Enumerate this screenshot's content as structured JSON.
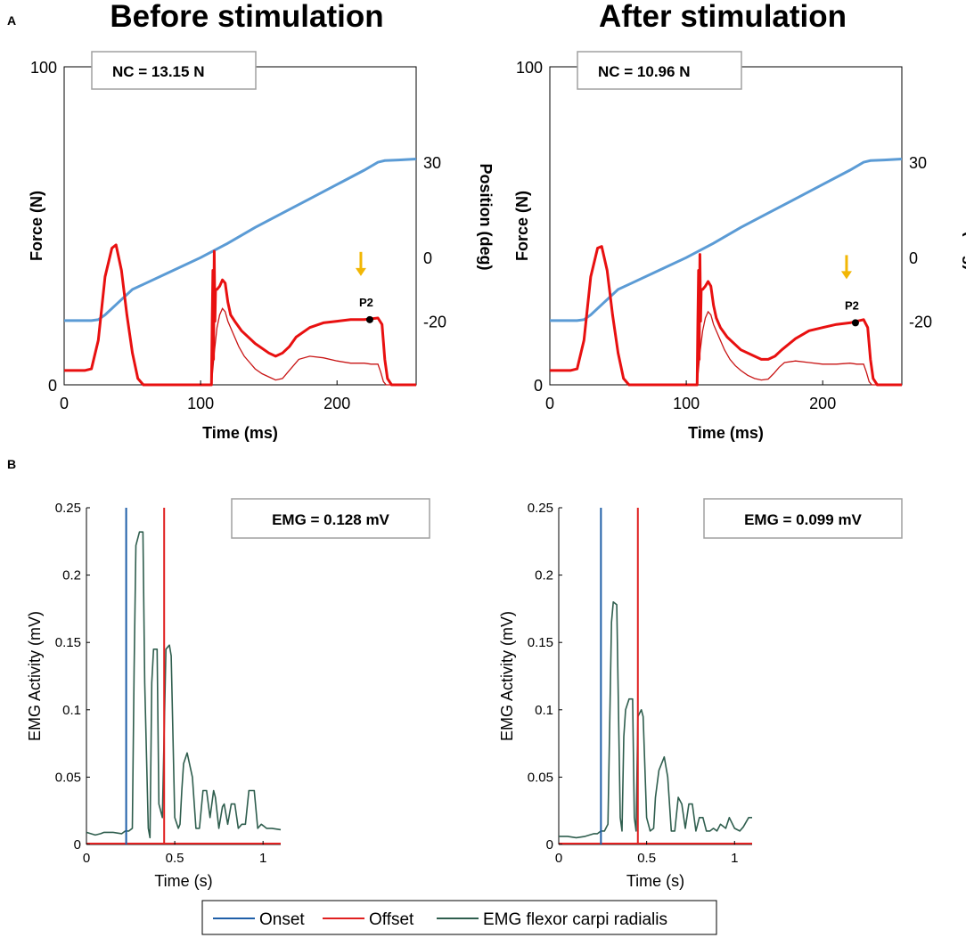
{
  "panel_a_label": "A",
  "panel_b_label": "B",
  "colors": {
    "force": "#e81010",
    "force_thin": "#c81414",
    "position": "#5b9bd5",
    "onset": "#1f5fa8",
    "offset": "#e02020",
    "emg": "#2f5e4e",
    "arrow": "#f2b705",
    "axis": "#000000",
    "box": "#a0a0a0"
  },
  "chart_data": [
    {
      "id": "force-before",
      "type": "line",
      "title": "Before stimulation",
      "xlabel": "Time (ms)",
      "ylabel": "Force (N)",
      "y2label": "Position (deg)",
      "xlim": [
        0,
        258
      ],
      "ylim": [
        0,
        100
      ],
      "y2lim": [
        -40,
        60
      ],
      "xticks": [
        "0",
        "100",
        "200"
      ],
      "xtick_values": [
        0,
        100,
        200
      ],
      "yticks": [
        "0",
        "100"
      ],
      "ytick_values": [
        0,
        100
      ],
      "y2ticks": [
        "-20",
        "0",
        "30"
      ],
      "y2tick_values": [
        -20,
        0,
        30
      ],
      "annotation": "NC = 13.15 N",
      "marker_label": "P2",
      "marker": [
        224,
        20.5
      ],
      "arrow_x": 224,
      "series": [
        {
          "name": "Position",
          "axis": "right",
          "x": [
            0,
            20,
            25,
            30,
            40,
            50,
            60,
            80,
            100,
            120,
            140,
            160,
            180,
            200,
            220,
            230,
            235,
            245,
            258
          ],
          "y": [
            -19.8,
            -19.8,
            -19.5,
            -18,
            -14,
            -10,
            -8,
            -4,
            0,
            4.5,
            9.5,
            14,
            18.5,
            23,
            27.5,
            30,
            30.5,
            30.7,
            31
          ]
        },
        {
          "name": "Force",
          "axis": "left",
          "x": [
            0,
            15,
            20,
            25,
            30,
            35,
            38,
            42,
            46,
            50,
            54,
            58,
            108,
            108.5,
            109,
            109.5,
            110,
            110.5,
            111,
            112,
            114,
            116,
            118,
            120,
            122,
            125,
            130,
            140,
            150,
            155,
            160,
            165,
            170,
            180,
            190,
            200,
            210,
            220,
            230,
            233,
            235,
            237,
            240,
            258
          ],
          "y": [
            4.5,
            4.5,
            5,
            14,
            34,
            43,
            44,
            36,
            22,
            10,
            2,
            0,
            0,
            20,
            36,
            8,
            42,
            20,
            30,
            30,
            31,
            33,
            32,
            26,
            22,
            20,
            17,
            13,
            10,
            9,
            10,
            12,
            15,
            18,
            19.5,
            20,
            20.5,
            20.5,
            21,
            19,
            8,
            2,
            0,
            0
          ]
        },
        {
          "name": "Force (thin)",
          "axis": "left",
          "x": [
            108,
            110,
            112,
            114,
            116,
            118,
            120,
            124,
            128,
            132,
            136,
            140,
            145,
            150,
            155,
            160,
            164,
            168,
            172,
            180,
            190,
            200,
            210,
            220,
            225,
            230,
            232,
            234,
            236,
            240,
            258
          ],
          "y": [
            0,
            10,
            18,
            22,
            24,
            23,
            20,
            16,
            12,
            9,
            7,
            5,
            3.5,
            2.5,
            1.5,
            2,
            4,
            6,
            8,
            9,
            8.5,
            7.5,
            6.8,
            6.8,
            6.5,
            6.5,
            4,
            1,
            0,
            0,
            0
          ]
        }
      ]
    },
    {
      "id": "force-after",
      "type": "line",
      "title": "After stimulation",
      "xlabel": "Time (ms)",
      "ylabel": "Force (N)",
      "y2label": "Position (deg)",
      "xlim": [
        0,
        258
      ],
      "ylim": [
        0,
        100
      ],
      "y2lim": [
        -40,
        60
      ],
      "xticks": [
        "0",
        "100",
        "200"
      ],
      "xtick_values": [
        0,
        100,
        200
      ],
      "yticks": [
        "0",
        "100"
      ],
      "ytick_values": [
        0,
        100
      ],
      "y2ticks": [
        "-20",
        "0",
        "30"
      ],
      "y2tick_values": [
        -20,
        0,
        30
      ],
      "annotation": "NC = 10.96 N",
      "marker_label": "P2",
      "marker": [
        224,
        19.5
      ],
      "arrow_x": 224,
      "series": [
        {
          "name": "Position",
          "axis": "right",
          "x": [
            0,
            20,
            25,
            30,
            40,
            50,
            60,
            80,
            100,
            120,
            140,
            160,
            180,
            200,
            220,
            230,
            235,
            245,
            258
          ],
          "y": [
            -19.8,
            -19.8,
            -19.5,
            -18,
            -14,
            -10,
            -8,
            -4,
            0,
            4.5,
            9.5,
            14,
            18.5,
            23,
            27.5,
            30,
            30.5,
            30.7,
            31
          ]
        },
        {
          "name": "Force",
          "axis": "left",
          "x": [
            0,
            15,
            20,
            25,
            30,
            35,
            38,
            42,
            46,
            50,
            54,
            58,
            108,
            108.5,
            109,
            109.5,
            110,
            110.5,
            111,
            112,
            114,
            116,
            118,
            120,
            122,
            125,
            130,
            140,
            150,
            155,
            160,
            165,
            170,
            180,
            190,
            200,
            210,
            220,
            230,
            233,
            235,
            237,
            240,
            258
          ],
          "y": [
            4.5,
            4.5,
            5,
            14,
            34,
            43,
            43.5,
            36,
            22,
            10,
            2,
            0,
            0,
            20,
            36,
            8,
            41,
            20,
            30,
            30,
            31,
            32.5,
            31,
            25,
            21,
            18,
            15,
            11,
            9,
            8,
            8,
            9,
            11,
            14.5,
            17,
            18,
            19,
            19.5,
            20.5,
            18,
            8,
            2,
            0,
            0
          ]
        },
        {
          "name": "Force (thin)",
          "axis": "left",
          "x": [
            108,
            110,
            112,
            114,
            116,
            118,
            120,
            124,
            128,
            132,
            136,
            140,
            145,
            150,
            155,
            160,
            164,
            168,
            172,
            180,
            190,
            200,
            210,
            220,
            225,
            230,
            232,
            234,
            236,
            240,
            258
          ],
          "y": [
            0,
            10,
            17,
            21,
            23,
            22,
            19,
            15,
            11,
            8,
            6,
            4.5,
            3,
            2,
            1.5,
            1.8,
            3.5,
            5.5,
            7,
            7.5,
            7,
            6.5,
            6.5,
            6.8,
            6.5,
            6.5,
            4,
            1,
            0,
            0,
            0
          ]
        }
      ]
    },
    {
      "id": "emg-before",
      "type": "line",
      "xlabel": "Time (s)",
      "ylabel": "EMG Activity (mV)",
      "xlim": [
        0,
        1.1
      ],
      "ylim": [
        0,
        0.25
      ],
      "xticks": [
        "0",
        "0.5",
        "1"
      ],
      "xtick_values": [
        0,
        0.5,
        1
      ],
      "yticks": [
        "0",
        "0.05",
        "0.1",
        "0.15",
        "0.2",
        "0.25"
      ],
      "ytick_values": [
        0,
        0.05,
        0.1,
        0.15,
        0.2,
        0.25
      ],
      "annotation": "EMG = 0.128 mV",
      "onset": 0.225,
      "offset": 0.44,
      "series": [
        {
          "name": "EMG flexor carpi radialis",
          "x": [
            0,
            0.05,
            0.08,
            0.1,
            0.15,
            0.2,
            0.22,
            0.24,
            0.26,
            0.27,
            0.28,
            0.3,
            0.32,
            0.33,
            0.35,
            0.36,
            0.37,
            0.38,
            0.4,
            0.41,
            0.43,
            0.45,
            0.47,
            0.48,
            0.5,
            0.52,
            0.53,
            0.54,
            0.55,
            0.57,
            0.6,
            0.62,
            0.64,
            0.66,
            0.68,
            0.7,
            0.72,
            0.73,
            0.75,
            0.77,
            0.78,
            0.8,
            0.82,
            0.84,
            0.86,
            0.88,
            0.9,
            0.92,
            0.95,
            0.97,
            0.99,
            1.0,
            1.02,
            1.05,
            1.1
          ],
          "y": [
            0.009,
            0.007,
            0.008,
            0.009,
            0.009,
            0.008,
            0.01,
            0.01,
            0.012,
            0.13,
            0.222,
            0.232,
            0.232,
            0.12,
            0.012,
            0.005,
            0.12,
            0.145,
            0.145,
            0.03,
            0.02,
            0.145,
            0.148,
            0.14,
            0.02,
            0.012,
            0.015,
            0.04,
            0.06,
            0.068,
            0.05,
            0.012,
            0.012,
            0.04,
            0.04,
            0.02,
            0.04,
            0.035,
            0.012,
            0.028,
            0.03,
            0.015,
            0.03,
            0.03,
            0.012,
            0.015,
            0.015,
            0.04,
            0.04,
            0.012,
            0.015,
            0.014,
            0.012,
            0.012,
            0.011
          ]
        }
      ]
    },
    {
      "id": "emg-after",
      "type": "line",
      "xlabel": "Time (s)",
      "ylabel": "EMG Activity (mV)",
      "xlim": [
        0,
        1.1
      ],
      "ylim": [
        0,
        0.25
      ],
      "xticks": [
        "0",
        "0.5",
        "1"
      ],
      "xtick_values": [
        0,
        0.5,
        1
      ],
      "yticks": [
        "0",
        "0.05",
        "0.1",
        "0.15",
        "0.2",
        "0.25"
      ],
      "ytick_values": [
        0,
        0.05,
        0.1,
        0.15,
        0.2,
        0.25
      ],
      "annotation": "EMG = 0.099 mV",
      "onset": 0.24,
      "offset": 0.45,
      "series": [
        {
          "name": "EMG flexor carpi radialis",
          "x": [
            0,
            0.05,
            0.1,
            0.15,
            0.2,
            0.22,
            0.24,
            0.26,
            0.28,
            0.29,
            0.3,
            0.31,
            0.33,
            0.35,
            0.36,
            0.37,
            0.38,
            0.4,
            0.42,
            0.43,
            0.44,
            0.45,
            0.47,
            0.48,
            0.5,
            0.52,
            0.54,
            0.55,
            0.57,
            0.6,
            0.62,
            0.64,
            0.66,
            0.68,
            0.7,
            0.72,
            0.74,
            0.76,
            0.78,
            0.8,
            0.82,
            0.84,
            0.86,
            0.88,
            0.9,
            0.92,
            0.95,
            0.97,
            1.0,
            1.03,
            1.05,
            1.08,
            1.1
          ],
          "y": [
            0.006,
            0.006,
            0.005,
            0.006,
            0.008,
            0.008,
            0.01,
            0.01,
            0.015,
            0.09,
            0.165,
            0.18,
            0.178,
            0.02,
            0.01,
            0.08,
            0.1,
            0.108,
            0.108,
            0.02,
            0.01,
            0.095,
            0.1,
            0.095,
            0.02,
            0.01,
            0.012,
            0.035,
            0.055,
            0.065,
            0.05,
            0.01,
            0.01,
            0.035,
            0.03,
            0.012,
            0.03,
            0.03,
            0.01,
            0.02,
            0.02,
            0.01,
            0.01,
            0.012,
            0.01,
            0.015,
            0.012,
            0.02,
            0.012,
            0.01,
            0.013,
            0.02,
            0.02
          ]
        }
      ]
    }
  ],
  "legend": {
    "items": [
      {
        "label": "Onset",
        "color": "#1f5fa8"
      },
      {
        "label": "Offset",
        "color": "#e02020"
      },
      {
        "label": "EMG flexor carpi radialis",
        "color": "#2f5e4e"
      }
    ]
  }
}
